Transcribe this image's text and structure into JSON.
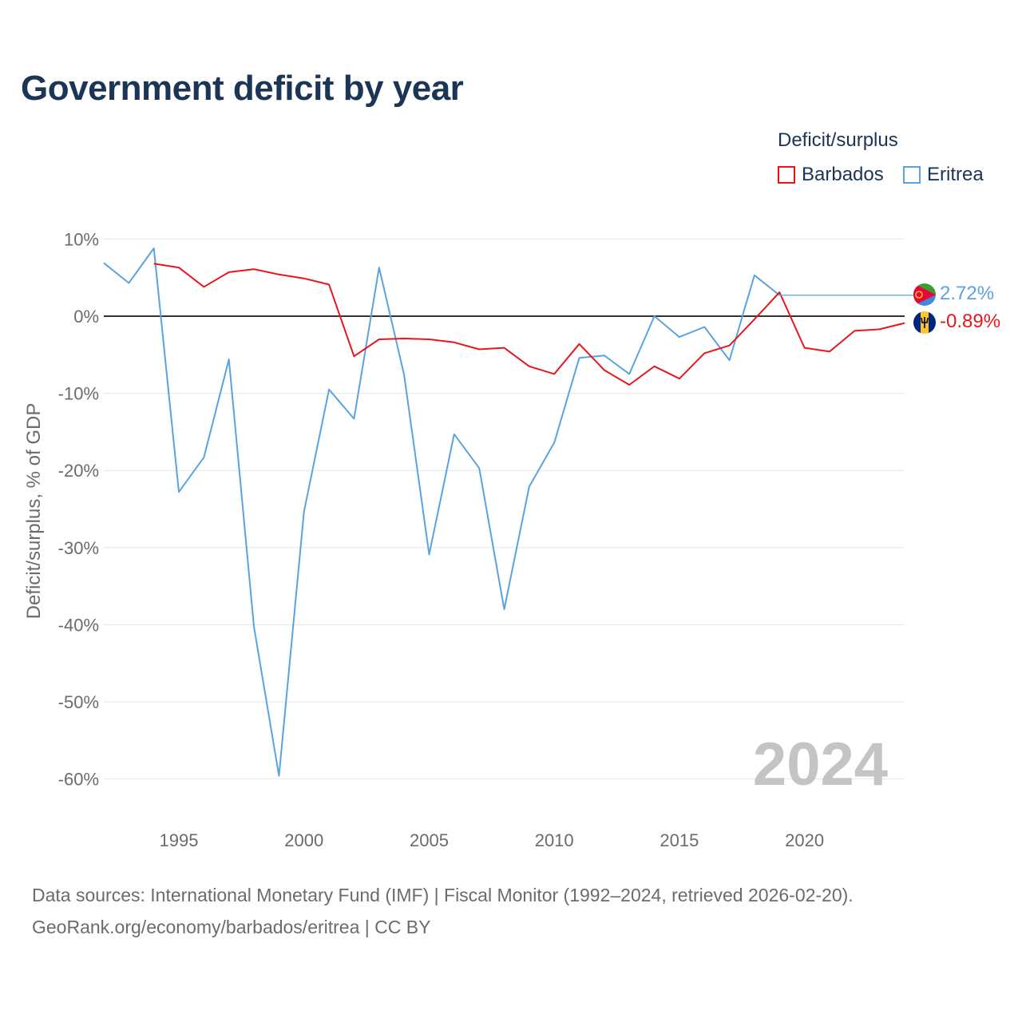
{
  "title": "Government deficit by year",
  "legend": {
    "title": "Deficit/surplus",
    "items": [
      {
        "name": "Barbados",
        "color": "#e8161b"
      },
      {
        "name": "Eritrea",
        "color": "#5ba3e0"
      }
    ]
  },
  "chart_data": {
    "type": "line",
    "title": "Government deficit by year",
    "xlabel": "",
    "ylabel": "Deficit/surplus, % of GDP",
    "xlim": [
      1992,
      2024
    ],
    "ylim": [
      -65,
      11
    ],
    "x_ticks": [
      1995,
      2000,
      2005,
      2010,
      2015,
      2020
    ],
    "x_tick_labels": [
      "1995",
      "2000",
      "2005",
      "2010",
      "2015",
      "2020"
    ],
    "y_ticks": [
      10,
      0,
      -10,
      -20,
      -30,
      -40,
      -50,
      -60
    ],
    "y_tick_labels": [
      "10%",
      "0%",
      "-10%",
      "-20%",
      "-30%",
      "-40%",
      "-50%",
      "-60%"
    ],
    "year_watermark": "2024",
    "series": [
      {
        "name": "Barbados",
        "color": "#e8161b",
        "end_label": "-0.89%",
        "flag": "barbados-flag",
        "x": [
          1994,
          1995,
          1996,
          1997,
          1998,
          1999,
          2000,
          2001,
          2002,
          2003,
          2004,
          2005,
          2006,
          2007,
          2008,
          2009,
          2010,
          2011,
          2012,
          2013,
          2014,
          2015,
          2016,
          2017,
          2018,
          2019,
          2020,
          2021,
          2022,
          2023,
          2024
        ],
        "values": [
          6.8,
          6.3,
          3.8,
          5.7,
          6.1,
          5.4,
          4.9,
          4.1,
          -5.2,
          -3.0,
          -2.9,
          -3.0,
          -3.4,
          -4.3,
          -4.1,
          -6.5,
          -7.5,
          -3.6,
          -7.0,
          -8.9,
          -6.5,
          -8.1,
          -4.8,
          -3.8,
          -0.4,
          3.1,
          -4.1,
          -4.6,
          -1.9,
          -1.7,
          -0.89
        ]
      },
      {
        "name": "Eritrea",
        "color": "#5ba3e0",
        "end_label": "2.72%",
        "flag": "eritrea-flag",
        "last_year": 2019,
        "x": [
          1992,
          1993,
          1994,
          1995,
          1996,
          1997,
          1998,
          1999,
          2000,
          2001,
          2002,
          2003,
          2004,
          2005,
          2006,
          2007,
          2008,
          2009,
          2010,
          2011,
          2012,
          2013,
          2014,
          2015,
          2016,
          2017,
          2018,
          2019
        ],
        "values": [
          6.9,
          4.3,
          8.8,
          -22.8,
          -18.3,
          -5.6,
          -40.3,
          -59.6,
          -25.3,
          -9.5,
          -13.3,
          6.3,
          -7.6,
          -30.9,
          -15.3,
          -19.7,
          -38.0,
          -22.1,
          -16.4,
          -5.4,
          -5.1,
          -7.5,
          0.0,
          -2.7,
          -1.4,
          -5.7,
          5.3,
          2.72
        ]
      }
    ]
  },
  "footer": {
    "line1": "Data sources: International Monetary Fund (IMF) | Fiscal Monitor (1992–2024, retrieved 2026-02-20).",
    "line2": "GeoRank.org/economy/barbados/eritrea | CC BY"
  }
}
